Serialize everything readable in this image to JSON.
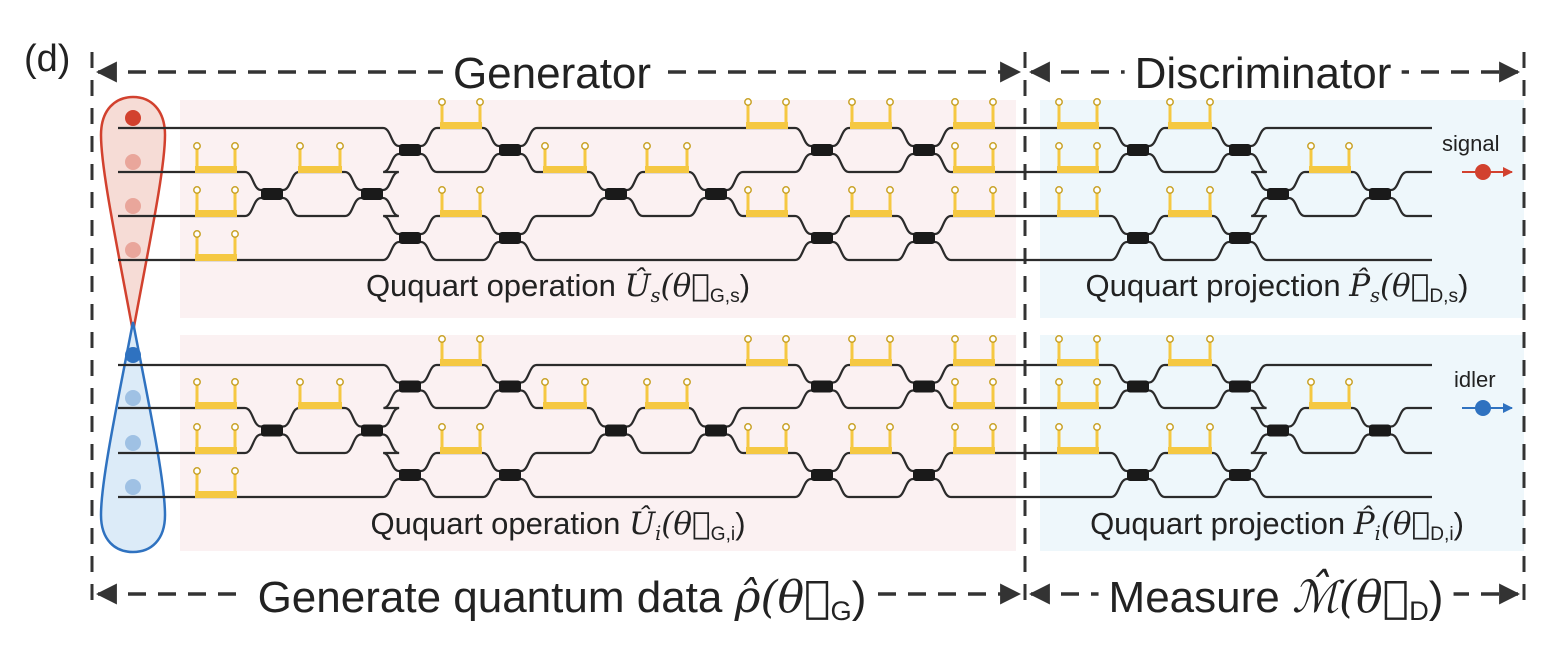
{
  "panel_label": "(d)",
  "headers": {
    "generator": "Generator",
    "discriminator": "Discriminator",
    "generate_quantum_data": "Generate quantum data",
    "generate_math": "ρ̂(θ⃗",
    "generate_math_sub": "G",
    "measure": "Measure",
    "measure_math": "ℳ̂(θ⃗",
    "measure_math_sub": "D"
  },
  "sections": {
    "signal_operation": {
      "text": "Ququart operation",
      "op": "Û",
      "op_sub": "s",
      "theta": "(θ⃗",
      "theta_sub": "G,s"
    },
    "signal_projection": {
      "text": "Ququart projection",
      "op": "P̂",
      "op_sub": "s",
      "theta": "(θ⃗",
      "theta_sub": "D,s"
    },
    "idler_operation": {
      "text": "Ququart operation",
      "op": "Û",
      "op_sub": "i",
      "theta": "(θ⃗",
      "theta_sub": "G,i"
    },
    "idler_projection": {
      "text": "Ququart projection",
      "op": "P̂",
      "op_sub": "i",
      "theta": "(θ⃗",
      "theta_sub": "D,i"
    }
  },
  "outputs": {
    "signal": "signal",
    "idler": "idler"
  },
  "colors": {
    "generator_bg": "#fbf1f2",
    "discriminator_bg": "#eef7fb",
    "signal": "#d2412e",
    "idler": "#2f72c0",
    "heater": "#f5c842",
    "waveguide": "#2b2b2b"
  }
}
